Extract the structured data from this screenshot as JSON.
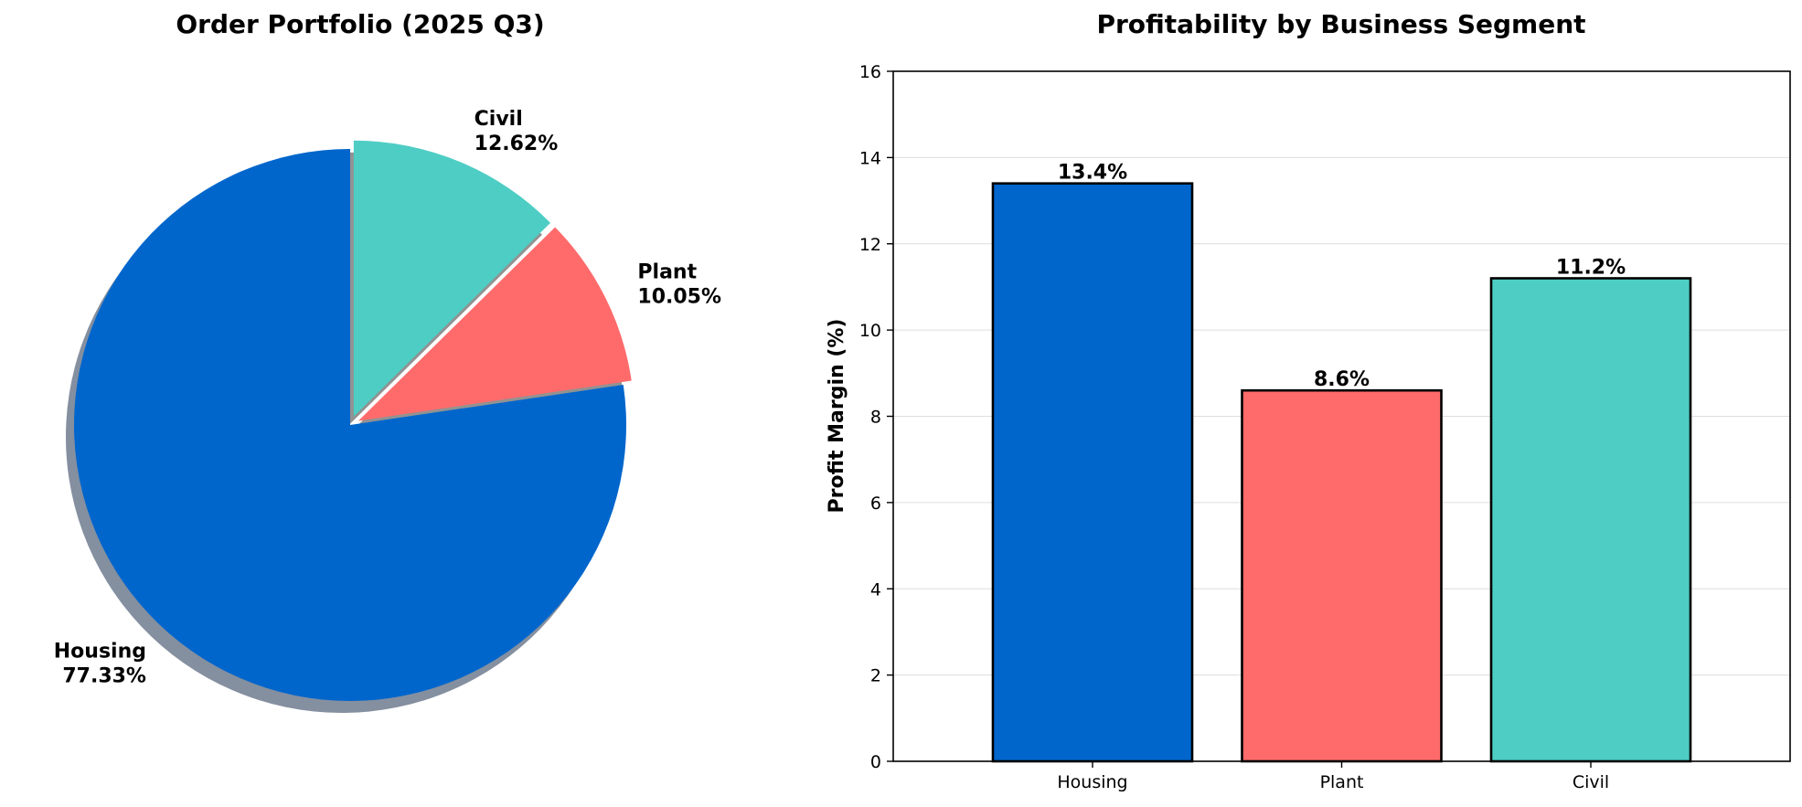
{
  "chart_data": [
    {
      "type": "pie",
      "title": "Order Portfolio (2025 Q3)",
      "categories": [
        "Housing",
        "Plant",
        "Civil"
      ],
      "values": [
        77.33,
        10.05,
        12.62
      ],
      "value_labels": [
        "77.33%",
        "10.05%",
        "12.62%"
      ],
      "colors": [
        "#0066cc",
        "#ff6b6b",
        "#4ecdc4"
      ],
      "explode": [
        "Plant",
        "Civil"
      ],
      "shadow": true,
      "start_angle": 90
    },
    {
      "type": "bar",
      "title": "Profitability by Business Segment",
      "categories": [
        "Housing",
        "Plant",
        "Civil"
      ],
      "values": [
        13.4,
        8.6,
        11.2
      ],
      "value_labels": [
        "13.4%",
        "8.6%",
        "11.2%"
      ],
      "colors": [
        "#0066cc",
        "#ff6b6b",
        "#4ecdc4"
      ],
      "xlabel": "",
      "ylabel": "Profit Margin (%)",
      "ylim": [
        0,
        16
      ],
      "yticks": [
        0,
        2,
        4,
        6,
        8,
        10,
        12,
        14,
        16
      ],
      "grid": "y"
    }
  ]
}
